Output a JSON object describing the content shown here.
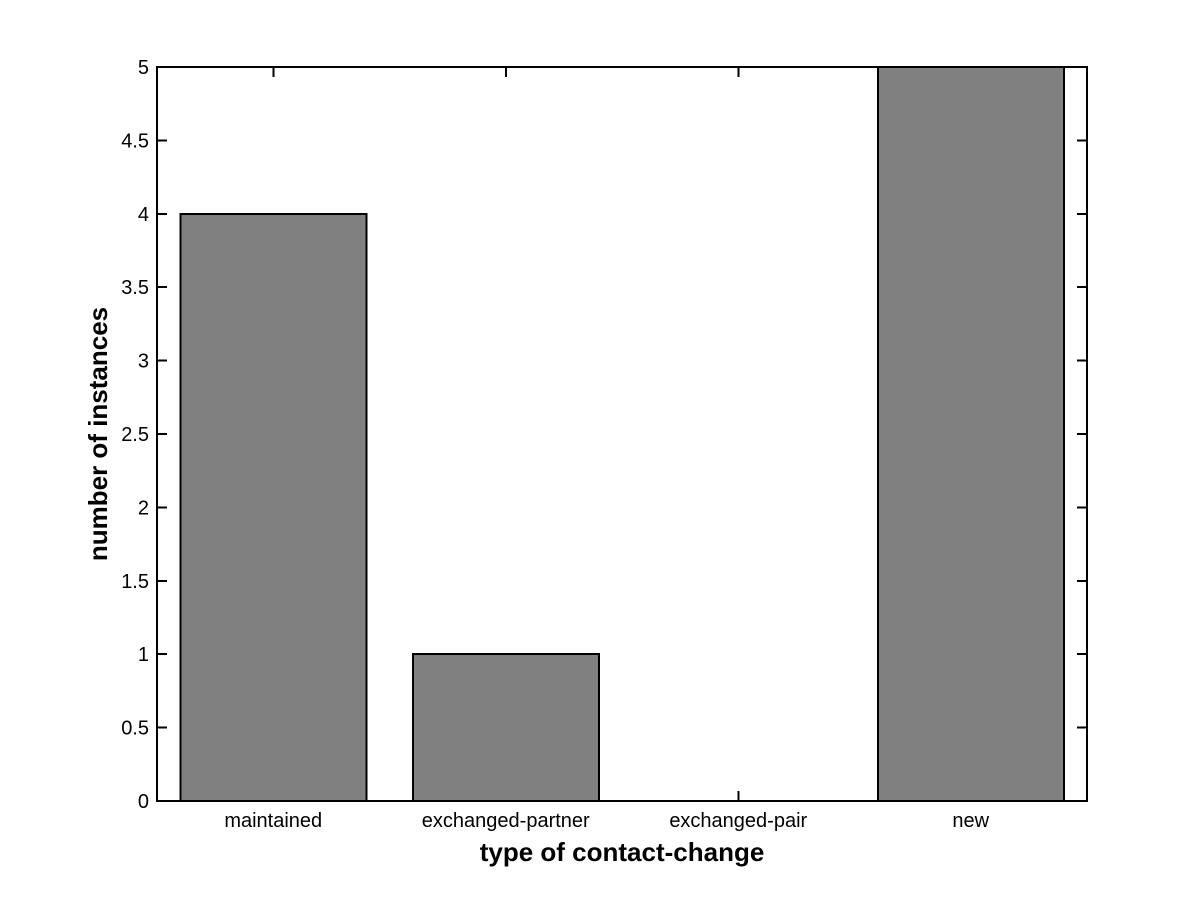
{
  "chart_data": {
    "type": "bar",
    "xlabel": "type of contact-change",
    "ylabel": "number of instances",
    "categories": [
      "maintained",
      "exchanged-partner",
      "exchanged-pair",
      "new"
    ],
    "values": [
      4,
      1,
      0,
      5
    ],
    "ylim": [
      0,
      5
    ],
    "ytick_step": 0.5,
    "ytick_labels": [
      "0",
      "0.5",
      "1",
      "1.5",
      "2",
      "2.5",
      "3",
      "3.5",
      "4",
      "4.5",
      "5"
    ],
    "grid": false,
    "legend": null,
    "colors": {
      "bar_fill": "#808080",
      "bar_edge": "#000000",
      "axis": "#000000",
      "background": "#ffffff",
      "text": "#000000"
    },
    "bar_width_fraction": 0.8,
    "tick_direction": "in"
  }
}
